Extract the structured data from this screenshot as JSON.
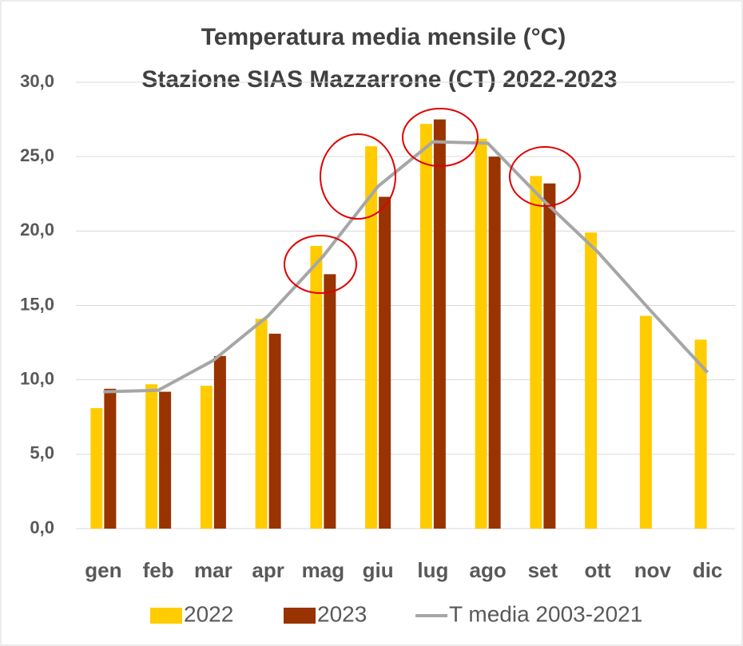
{
  "chart_data": {
    "type": "bar-line",
    "title": [
      "Temperatura media mensile (°C)",
      "Stazione SIAS Mazzarrone (CT) 2022-2023"
    ],
    "categories": [
      "gen",
      "feb",
      "mar",
      "apr",
      "mag",
      "giu",
      "lug",
      "ago",
      "set",
      "ott",
      "nov",
      "dic"
    ],
    "series": [
      {
        "name": "2022",
        "type": "bar",
        "color": "#FFCC00",
        "values": [
          8.1,
          9.7,
          9.6,
          14.1,
          19.0,
          25.7,
          27.2,
          26.2,
          23.7,
          19.9,
          14.3,
          12.7
        ]
      },
      {
        "name": "2023",
        "type": "bar",
        "color": "#993300",
        "values": [
          9.4,
          9.2,
          11.6,
          13.1,
          17.1,
          22.3,
          27.5,
          25.0,
          23.2,
          null,
          null,
          null
        ]
      },
      {
        "name": "T media 2003-2021",
        "type": "line",
        "color": "#A6A6A6",
        "values": [
          9.2,
          9.3,
          11.3,
          14.3,
          18.3,
          23.0,
          26.0,
          25.9,
          22.1,
          18.6,
          14.5,
          10.5
        ]
      }
    ],
    "ylim": [
      0,
      30
    ],
    "yticks": [
      {
        "value": 0,
        "label": "0,0"
      },
      {
        "value": 5,
        "label": "5,0"
      },
      {
        "value": 10,
        "label": "10,0"
      },
      {
        "value": 15,
        "label": "15,0"
      },
      {
        "value": 20,
        "label": "20,0"
      },
      {
        "value": 25,
        "label": "25,0"
      },
      {
        "value": 30,
        "label": "30,0"
      }
    ],
    "grid": true,
    "legend": "bottom"
  }
}
